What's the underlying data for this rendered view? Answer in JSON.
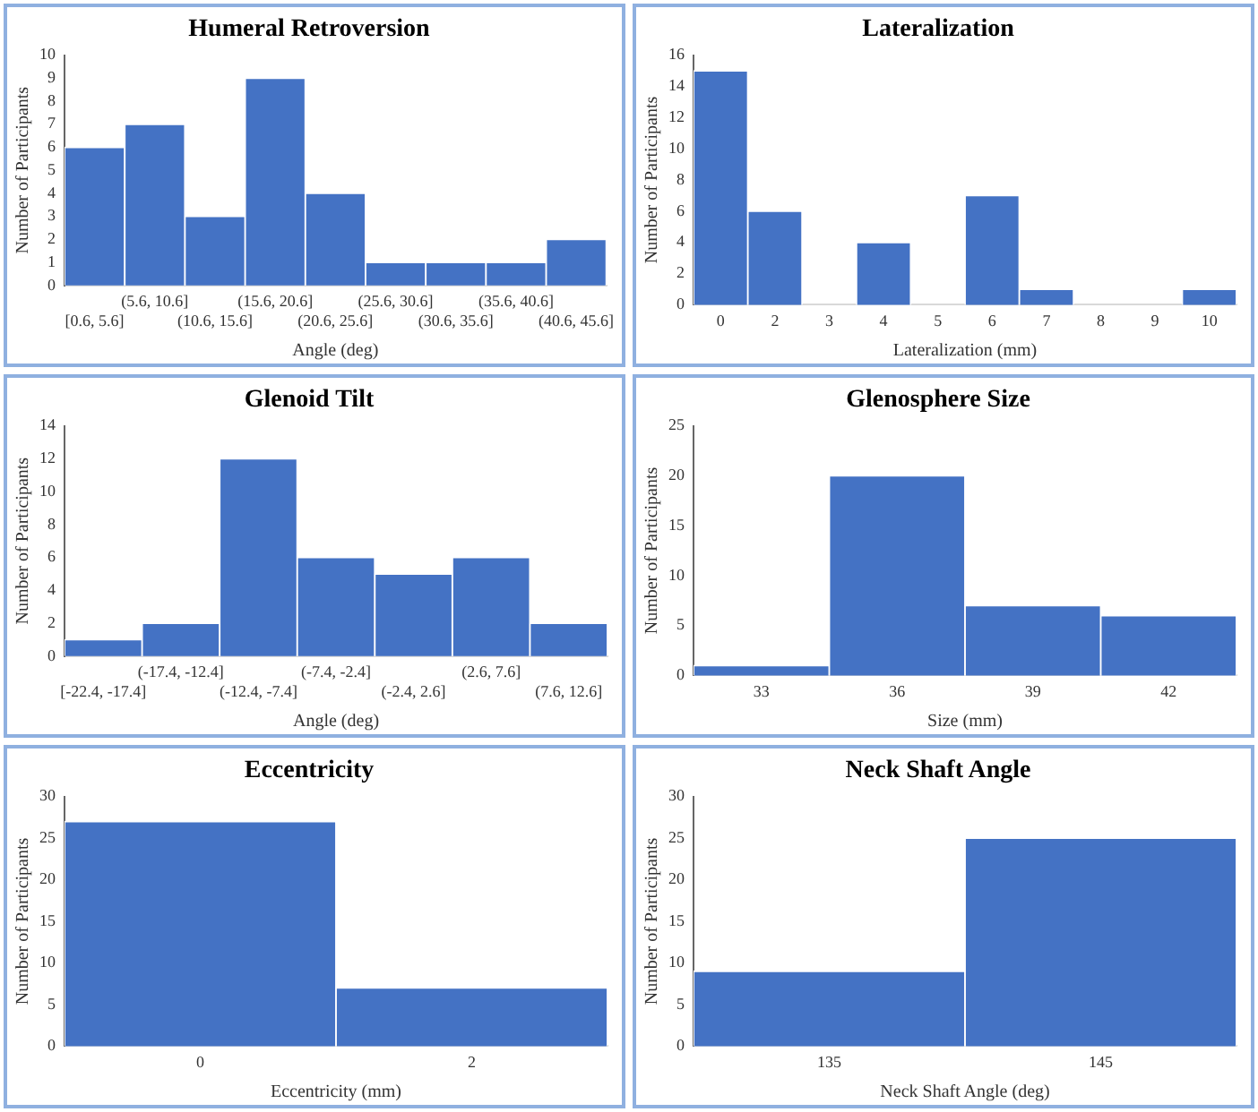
{
  "chart_data": [
    {
      "type": "bar",
      "title": "Humeral Retroversion",
      "xlabel": "Angle (deg)",
      "ylabel": "Number of Participants",
      "categories": [
        "[0.6, 5.6]",
        "(5.6, 10.6]",
        "(10.6, 15.6]",
        "(15.6, 20.6]",
        "(20.6, 25.6]",
        "(25.6, 30.6]",
        "(30.6, 35.6]",
        "(35.6, 40.6]",
        "(40.6, 45.6]"
      ],
      "values": [
        6,
        7,
        3,
        9,
        4,
        1,
        1,
        1,
        2
      ],
      "color": "#4472c4",
      "ylim": [
        0,
        10
      ],
      "yticks": [
        0,
        1,
        2,
        3,
        4,
        5,
        6,
        7,
        8,
        9,
        10
      ],
      "grid": false
    },
    {
      "type": "bar",
      "title": "Lateralization",
      "xlabel": "Lateralization (mm)",
      "ylabel": "Number of Participants",
      "categories": [
        "0",
        "2",
        "3",
        "4",
        "5",
        "6",
        "7",
        "8",
        "9",
        "10"
      ],
      "values": [
        15,
        6,
        0,
        4,
        0,
        7,
        1,
        0,
        0,
        1
      ],
      "color": "#4472c4",
      "ylim": [
        0,
        16
      ],
      "yticks": [
        0,
        2,
        4,
        6,
        8,
        10,
        12,
        14,
        16
      ],
      "grid": false
    },
    {
      "type": "bar",
      "title": "Glenoid Tilt",
      "xlabel": "Angle (deg)",
      "ylabel": "Number of Participants",
      "categories": [
        "[-22.4, -17.4]",
        "(-17.4, -12.4]",
        "(-12.4, -7.4]",
        "(-7.4, -2.4]",
        "(-2.4, 2.6]",
        "(2.6, 7.6]",
        "(7.6, 12.6]"
      ],
      "values": [
        1,
        2,
        12,
        6,
        5,
        6,
        2
      ],
      "color": "#4472c4",
      "ylim": [
        0,
        14
      ],
      "yticks": [
        0,
        2,
        4,
        6,
        8,
        10,
        12,
        14
      ],
      "grid": false
    },
    {
      "type": "bar",
      "title": "Glenosphere Size",
      "xlabel": "Size (mm)",
      "ylabel": "Number of Participants",
      "categories": [
        "33",
        "36",
        "39",
        "42"
      ],
      "values": [
        1,
        20,
        7,
        6
      ],
      "color": "#4472c4",
      "ylim": [
        0,
        25
      ],
      "yticks": [
        0,
        5,
        10,
        15,
        20,
        25
      ],
      "grid": false
    },
    {
      "type": "bar",
      "title": "Eccentricity",
      "xlabel": "Eccentricity (mm)",
      "ylabel": "Number of Participants",
      "categories": [
        "0",
        "2"
      ],
      "values": [
        27,
        7
      ],
      "color": "#4472c4",
      "ylim": [
        0,
        30
      ],
      "yticks": [
        0,
        5,
        10,
        15,
        20,
        25,
        30
      ],
      "grid": false
    },
    {
      "type": "bar",
      "title": "Neck Shaft Angle",
      "xlabel": "Neck Shaft Angle (deg)",
      "ylabel": "Number of Participants",
      "categories": [
        "135",
        "145"
      ],
      "values": [
        9,
        25
      ],
      "color": "#4472c4",
      "ylim": [
        0,
        30
      ],
      "yticks": [
        0,
        5,
        10,
        15,
        20,
        25,
        30
      ],
      "grid": false
    }
  ]
}
